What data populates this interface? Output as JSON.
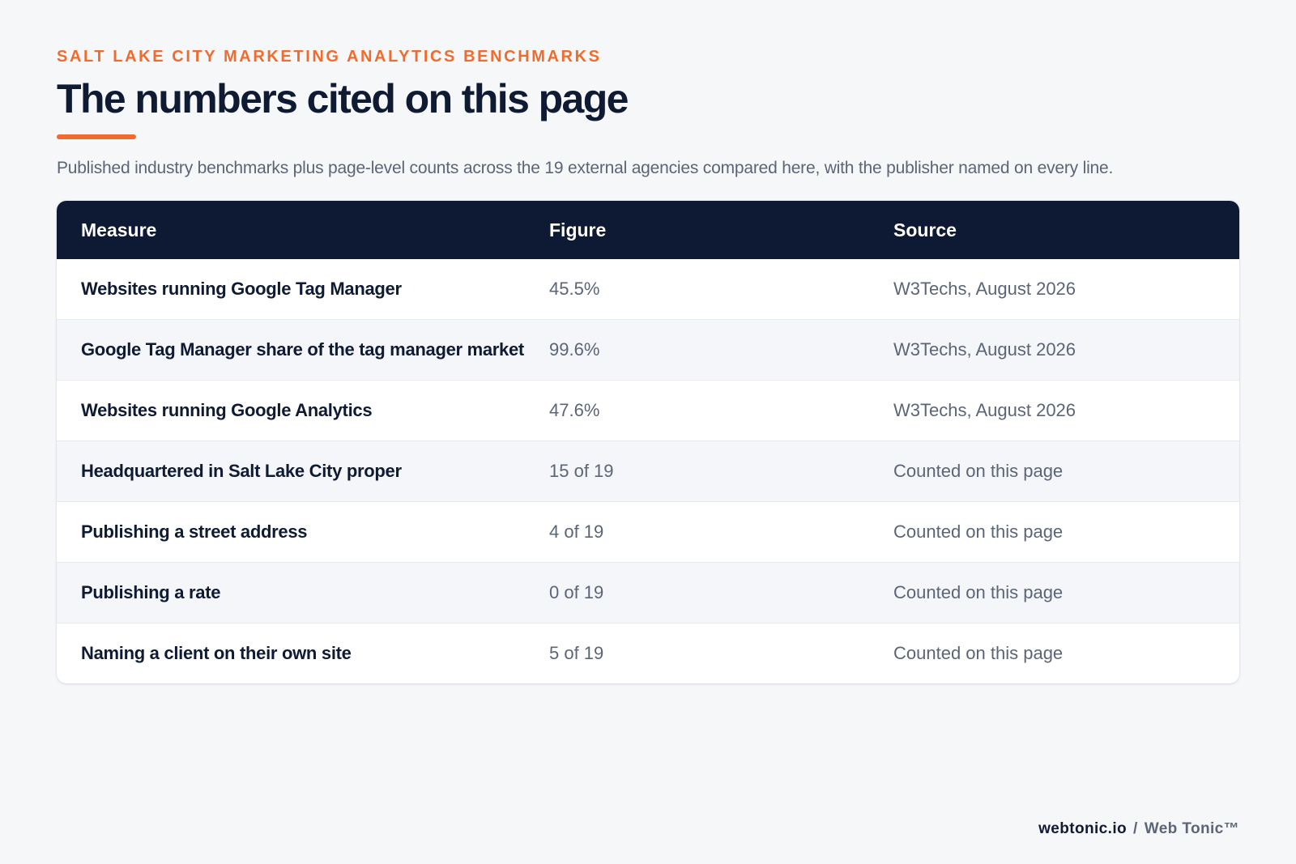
{
  "header": {
    "eyebrow": "SALT LAKE CITY MARKETING ANALYTICS BENCHMARKS",
    "title": "The numbers cited on this page",
    "subtitle": "Published industry benchmarks plus page-level counts across the 19 external agencies compared here, with the publisher named on every line."
  },
  "table": {
    "columns": [
      "Measure",
      "Figure",
      "Source"
    ],
    "rows": [
      {
        "measure": "Websites running Google Tag Manager",
        "figure": "45.5%",
        "source": "W3Techs, August 2026"
      },
      {
        "measure": "Google Tag Manager share of the tag manager market",
        "figure": "99.6%",
        "source": "W3Techs, August 2026"
      },
      {
        "measure": "Websites running Google Analytics",
        "figure": "47.6%",
        "source": "W3Techs, August 2026"
      },
      {
        "measure": "Headquartered in Salt Lake City proper",
        "figure": "15 of 19",
        "source": "Counted on this page"
      },
      {
        "measure": "Publishing a street address",
        "figure": "4 of 19",
        "source": "Counted on this page"
      },
      {
        "measure": "Publishing a rate",
        "figure": "0 of 19",
        "source": "Counted on this page"
      },
      {
        "measure": "Naming a client on their own site",
        "figure": "5 of 19",
        "source": "Counted on this page"
      }
    ]
  },
  "footer": {
    "domain": "webtonic.io",
    "separator": "/",
    "brand": "Web Tonic™"
  },
  "colors": {
    "accent": "#ef6c2e",
    "navy": "#0e1a34",
    "muted_text": "#5b6577",
    "background": "#f6f7f9"
  }
}
